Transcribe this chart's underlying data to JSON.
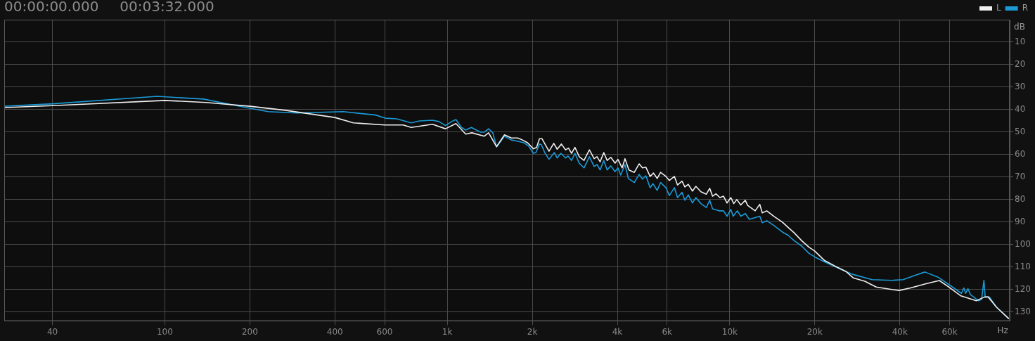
{
  "chart_data": {
    "type": "line",
    "xlabel": "Hz",
    "ylabel": "dB",
    "annotations": [
      "00:00:00.000",
      "00:03:32.000"
    ],
    "log": "x",
    "grid": true,
    "legend": "top right",
    "marker": "none",
    "line_style": "solid",
    "xlim": [
      27,
      98000
    ],
    "xticks": [
      40,
      100,
      200,
      400,
      600,
      {
        "value": 1000,
        "label": "1k"
      },
      {
        "value": 2000,
        "label": "2k"
      },
      {
        "value": 4000,
        "label": "4k"
      },
      {
        "value": 6000,
        "label": "6k"
      },
      {
        "value": 10000,
        "label": "10k"
      },
      {
        "value": 20000,
        "label": "20k"
      },
      {
        "value": 40000,
        "label": "40k"
      },
      {
        "value": 60000,
        "label": "60k"
      }
    ],
    "ylim": [
      134,
      0
    ],
    "yticks": [
      10,
      20,
      30,
      40,
      50,
      60,
      70,
      80,
      90,
      100,
      110,
      120,
      130
    ],
    "series": [
      {
        "name": "L",
        "color": "#eeeeee",
        "x": [
          27,
          40,
          100,
          140,
          200,
          267,
          400,
          465,
          600,
          698,
          745,
          886,
          985,
          1073,
          1162,
          1222,
          1352,
          1400,
          1494,
          1594,
          1686,
          1774,
          1846,
          1923,
          2018,
          2070,
          2120,
          2163,
          2291,
          2382,
          2449,
          2535,
          2624,
          2685,
          2754,
          2831,
          2931,
          3048,
          3184,
          3311,
          3388,
          3475,
          3581,
          3681,
          3793,
          3926,
          4018,
          4159,
          4256,
          4395,
          4592,
          4775,
          4909,
          5047,
          5224,
          5370,
          5534,
          5689,
          5943,
          6109,
          6368,
          6531,
          6776,
          6934,
          7129,
          7379,
          7586,
          7907,
          8260,
          8492,
          8690,
          8933,
          9226,
          9506,
          9772,
          10090,
          10330,
          10590,
          10940,
          11350,
          11570,
          12300,
          12770,
          13030,
          13520,
          14320,
          15350,
          16110,
          16880,
          17950,
          19080,
          20000,
          21660,
          23450,
          25740,
          27360,
          30060,
          33000,
          37500,
          39800,
          43650,
          49550,
          55200,
          59700,
          65800,
          74600,
          79800,
          82200,
          87900,
          97300
        ],
        "values": [
          39.1,
          38.2,
          35.9,
          36.8,
          38.5,
          40.3,
          43.5,
          45.9,
          46.8,
          46.8,
          47.9,
          46.5,
          48.5,
          46.2,
          50.9,
          50.3,
          51.8,
          50.3,
          56.5,
          51.2,
          52.6,
          52.6,
          53.5,
          54.7,
          57.4,
          56.8,
          52.9,
          52.9,
          58.5,
          55,
          57.6,
          55.3,
          57.9,
          57.1,
          59.4,
          56.8,
          60.9,
          62.6,
          57.9,
          61.8,
          60.9,
          63.2,
          59.1,
          62.6,
          61.2,
          63.8,
          62.1,
          65.9,
          61.8,
          66.8,
          67.9,
          64.1,
          65.9,
          65.6,
          69.7,
          68.2,
          70.6,
          67.9,
          69.7,
          71.5,
          69.7,
          73.5,
          71.8,
          74.4,
          73.2,
          76.2,
          74.1,
          76.5,
          77.6,
          75,
          78.5,
          77.4,
          79.1,
          78.5,
          81.5,
          79.1,
          81.8,
          80,
          82.4,
          80.3,
          82.6,
          85,
          82.1,
          85.9,
          85,
          87.4,
          90,
          92.4,
          94.7,
          98.2,
          101.2,
          102.9,
          107.1,
          109.4,
          111.9,
          114.8,
          116.3,
          118.9,
          120,
          120.4,
          119.3,
          117.4,
          116,
          118.9,
          122.8,
          125,
          123.3,
          123.3,
          127.8,
          133
        ]
      },
      {
        "name": "R",
        "color": "#1a9ad6",
        "x": [
          27,
          40,
          94,
          137,
          200,
          232,
          294,
          428,
          558,
          603,
          662,
          745,
          797,
          886,
          934,
          985,
          1036,
          1073,
          1122,
          1162,
          1216,
          1312,
          1352,
          1400,
          1449,
          1494,
          1594,
          1686,
          1783,
          1866,
          1941,
          2018,
          2059,
          2120,
          2153,
          2213,
          2291,
          2393,
          2449,
          2523,
          2624,
          2673,
          2754,
          2831,
          2931,
          3048,
          3184,
          3311,
          3388,
          3475,
          3581,
          3681,
          3793,
          3926,
          4018,
          4111,
          4256,
          4375,
          4592,
          4775,
          4909,
          5047,
          5224,
          5346,
          5534,
          5689,
          5943,
          6109,
          6368,
          6531,
          6776,
          6934,
          7129,
          7379,
          7586,
          7907,
          8260,
          8492,
          8690,
          9183,
          9506,
          9772,
          10090,
          10280,
          10640,
          10940,
          11350,
          11730,
          12770,
          13030,
          13520,
          14320,
          15350,
          16110,
          16880,
          17950,
          19080,
          20000,
          21660,
          24120,
          27360,
          31920,
          37500,
          41100,
          45150,
          49100,
          54450,
          59700,
          66100,
          67400,
          68400,
          69700,
          71100,
          76000,
          77900,
          79400,
          80200,
          83000,
          87900,
          97300
        ],
        "values": [
          38.5,
          37.4,
          34.1,
          35.3,
          39.4,
          40.9,
          41.5,
          40.9,
          42.4,
          43.8,
          44.1,
          45.9,
          45,
          44.7,
          45.3,
          47.1,
          45.3,
          44.4,
          47.9,
          49.1,
          47.9,
          50,
          50,
          48.5,
          50.3,
          56.5,
          51.8,
          53.5,
          54.1,
          54.7,
          56.2,
          59.4,
          59.1,
          55.3,
          55.6,
          59.1,
          62.1,
          59.1,
          61.5,
          59.4,
          61.5,
          60.6,
          62.6,
          59.4,
          63.8,
          65.9,
          60.9,
          65.3,
          64.4,
          66.8,
          62.6,
          66.8,
          65,
          67.6,
          65.9,
          69.1,
          64.4,
          70.6,
          72.4,
          68.8,
          70.9,
          69.4,
          74.7,
          72.9,
          75.9,
          72.4,
          74.7,
          78.2,
          74.7,
          79.1,
          76.8,
          80.3,
          77.9,
          81.5,
          79.1,
          81.8,
          83.5,
          80.3,
          84.1,
          85,
          85,
          87.4,
          84.4,
          87.4,
          85,
          87.4,
          86.2,
          88.8,
          87.4,
          90.3,
          89.4,
          91.5,
          94.4,
          95.9,
          98.2,
          100.6,
          103.9,
          105.5,
          107.7,
          110.4,
          113.3,
          115.6,
          115.9,
          115.6,
          113.7,
          112.2,
          114.4,
          117.8,
          121.7,
          119.3,
          121.7,
          119.6,
          122.2,
          125,
          124.4,
          115.9,
          123.3,
          123.3,
          127.8,
          133
        ]
      }
    ]
  }
}
